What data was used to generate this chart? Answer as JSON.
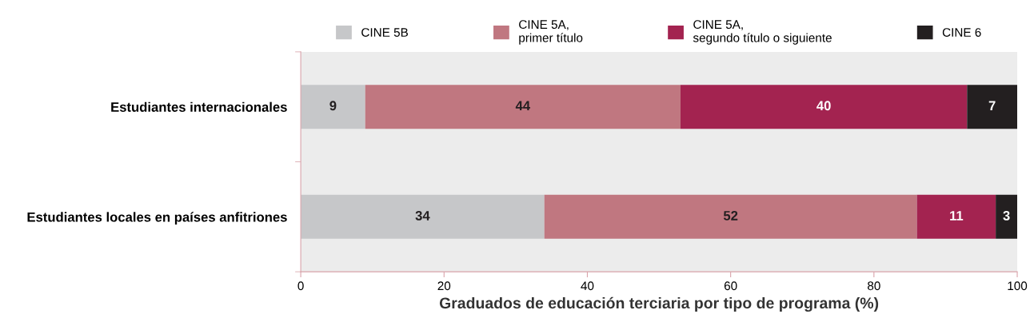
{
  "chart_data": {
    "type": "bar",
    "orientation": "horizontal",
    "stacked": true,
    "categories": [
      "Estudiantes internacionales",
      "Estudiantes locales en países anfitriones"
    ],
    "series": [
      {
        "name": "CINE 5B",
        "color": "#c6c7c9",
        "values": [
          9,
          34
        ]
      },
      {
        "name": "CINE 5A,\nprimer título",
        "color": "#c07780",
        "values": [
          44,
          52
        ]
      },
      {
        "name": "CINE 5A,\nsegundo título o siguiente",
        "color": "#a32350",
        "values": [
          40,
          11
        ]
      },
      {
        "name": "CINE 6",
        "color": "#231f20",
        "values": [
          7,
          3
        ]
      }
    ],
    "xlabel": "Graduados de educación terciaria por tipo de programa (%)",
    "xlim": [
      0,
      100
    ],
    "xticks": [
      0,
      20,
      40,
      60,
      80,
      100
    ],
    "data_labels": true,
    "grid": false,
    "legend": "top"
  }
}
